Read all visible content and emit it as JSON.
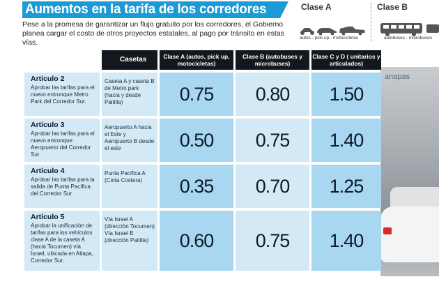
{
  "title": "Aumentos en la tarifa de los corredores",
  "intro": "Pese a la promesa de garantizar un flujo gratuito por los corredores, el Gobierno planea cargar el costo de otros proyectos estatales, al pago por tránsito en estas vías.",
  "legend": {
    "class_a": {
      "title": "Clase A",
      "caption": "autos - pick up - motocicletas"
    },
    "class_b": {
      "title": "Clase B",
      "caption": "autobuses - microbuses"
    }
  },
  "photo_sign": "anapas",
  "colors": {
    "title_bar": "#1b9ad6",
    "header_bg": "#13171e",
    "light_cell": "#d4e9f6",
    "dark_cell": "#a9d6f0"
  },
  "table": {
    "headers": {
      "casetas": "Casetas",
      "class_a": "Clase A (autos, pick up, motocicletas)",
      "class_b": "Clase B (autobuses y microbuses)",
      "class_cd": "Clase C y D ( unitarios y articulados)"
    },
    "rows": [
      {
        "article": "Artículo 2",
        "description": "Aprobar las tarifas para el nuevo entronque Metro Park del Corredor Sur.",
        "casetas": "Caseta A y caseta B de Metro park (hacia y desde Paitilla)",
        "a": "0.75",
        "b": "0.80",
        "cd": "1.50"
      },
      {
        "article": "Artículo 3",
        "description": "Aprobar las tarifas para el nuevo entronque Aeropuerto del Corredor Sur.",
        "casetas": "Aeropuerto A hacia el Este y Aeropuerto B desde el este",
        "a": "0.50",
        "b": "0.75",
        "cd": "1.40"
      },
      {
        "article": "Artículo 4",
        "description": "Aprobar las tarifas para la salida de Punta Pacífica del Corredor Sur.",
        "casetas": "Punta Pacífica A (Cinta Costera)",
        "a": "0.35",
        "b": "0.70",
        "cd": "1.25"
      },
      {
        "article": "Artículo 5",
        "description": "Aprobar la unificación de tarifas para los vehículos clase A de la caseta A (hacia Tocumen) vía Israel, ubicada en Atlapa, Corredor Sur.",
        "casetas": "Vía Israel A (dirección Tocumen) Vía Israel B (dirección Paitilla)",
        "a": "0.60",
        "b": "0.75",
        "cd": "1.40"
      }
    ]
  }
}
